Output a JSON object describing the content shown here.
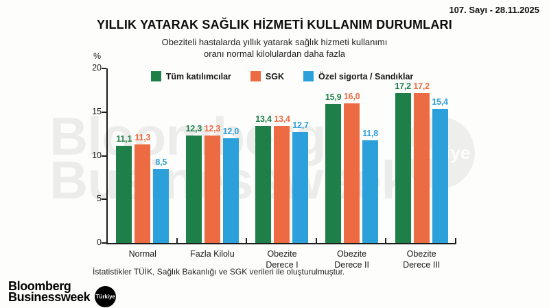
{
  "header": {
    "issue": "107. Sayı - 28.11.2025",
    "title": "YILLIK YATARAK SAĞLIK HİZMETİ KULLANIM DURUMLARI",
    "subtitle_line1": "Obeziteli hastalarda yıllık yatarak sağlık hizmeti kullanımı",
    "subtitle_line2": "oranı normal kilolulardan daha fazla"
  },
  "chart_data": {
    "type": "bar",
    "title": "YILLIK YATARAK SAĞLIK HİZMETİ KULLANIM DURUMLARI",
    "subtitle": "Obeziteli hastalarda yıllık yatarak sağlık hizmeti kullanımı oranı normal kilolulardan daha fazla",
    "ylabel": "%",
    "ylim": [
      0,
      20
    ],
    "yticks": [
      0,
      5,
      10,
      15,
      20
    ],
    "grid": false,
    "legend_position": "top-center",
    "decimal_separator": ",",
    "categories": [
      "Normal",
      "Fazla Kilolu",
      "Obezite Derece I",
      "Obezite Derece II",
      "Obezite Derece III"
    ],
    "series": [
      {
        "name": "Tüm katılımcılar",
        "color": "#1E8048",
        "values": [
          11.1,
          12.3,
          13.4,
          15.9,
          17.2
        ]
      },
      {
        "name": "SGK",
        "color": "#ED6B42",
        "values": [
          11.3,
          12.3,
          13.4,
          16.0,
          17.2
        ]
      },
      {
        "name": "Özel sigorta / Sandıklar",
        "color": "#2CA0DA",
        "values": [
          8.5,
          12.0,
          12.7,
          11.8,
          15.4
        ]
      }
    ]
  },
  "watermark": {
    "line1": "Bloomberg",
    "line2": "Businessweek",
    "badge": "Türkiye"
  },
  "footer": {
    "source": "İstatistikler TÜİK, Sağlık Bakanlığı ve SGK verileri ile oluşturulmuştur.",
    "logo_line1": "Bloomberg",
    "logo_line2": "Businessweek",
    "logo_badge": "Türkiye"
  }
}
